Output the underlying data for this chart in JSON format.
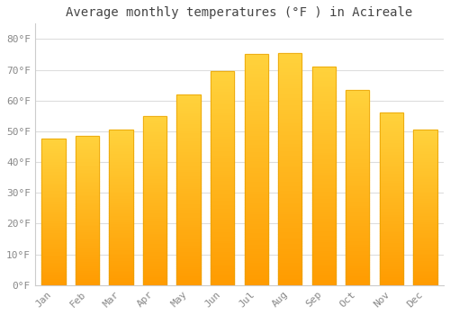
{
  "title": "Average monthly temperatures (°F ) in Acireale",
  "months": [
    "Jan",
    "Feb",
    "Mar",
    "Apr",
    "May",
    "Jun",
    "Jul",
    "Aug",
    "Sep",
    "Oct",
    "Nov",
    "Dec"
  ],
  "values": [
    47.5,
    48.5,
    50.5,
    55.0,
    62.0,
    69.5,
    75.0,
    75.5,
    71.0,
    63.5,
    56.0,
    50.5
  ],
  "bar_color_light": "#FFD040",
  "bar_color_dark": "#FFA000",
  "bar_edge_color": "#E8A000",
  "background_color": "#FFFFFF",
  "plot_bg_color": "#FFFFFF",
  "grid_color": "#DDDDDD",
  "ytick_labels": [
    "0°F",
    "10°F",
    "20°F",
    "30°F",
    "40°F",
    "50°F",
    "60°F",
    "70°F",
    "80°F"
  ],
  "ytick_values": [
    0,
    10,
    20,
    30,
    40,
    50,
    60,
    70,
    80
  ],
  "ylim": [
    0,
    85
  ],
  "title_fontsize": 10,
  "tick_fontsize": 8,
  "tick_color": "#888888",
  "title_color": "#444444",
  "bar_width": 0.7,
  "gradient_steps": 100
}
